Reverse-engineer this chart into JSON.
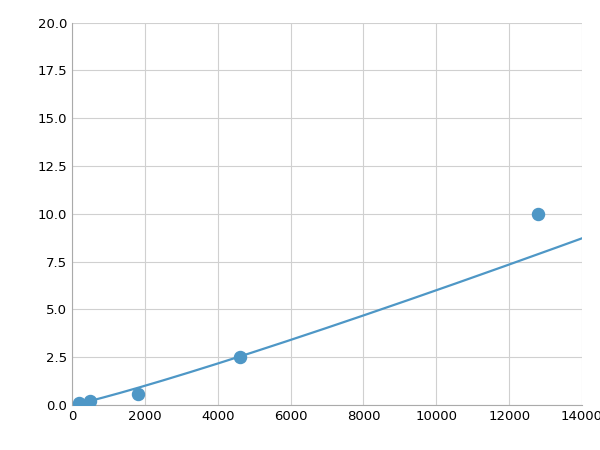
{
  "x_points": [
    200,
    500,
    1800,
    4600,
    12800
  ],
  "y_points": [
    0.1,
    0.2,
    0.6,
    2.5,
    10.0
  ],
  "line_color": "#4e97c6",
  "marker_color": "#4e97c6",
  "marker_size": 5,
  "line_width": 1.6,
  "xlim": [
    0,
    14000
  ],
  "ylim": [
    0,
    20
  ],
  "xticks": [
    0,
    2000,
    4000,
    6000,
    8000,
    10000,
    12000,
    14000
  ],
  "yticks": [
    0.0,
    2.5,
    5.0,
    7.5,
    10.0,
    12.5,
    15.0,
    17.5,
    20.0
  ],
  "grid_color": "#d0d0d0",
  "background_color": "#ffffff",
  "tick_label_fontsize": 9.5,
  "power_a": 4.5e-07,
  "power_b": 1.72
}
